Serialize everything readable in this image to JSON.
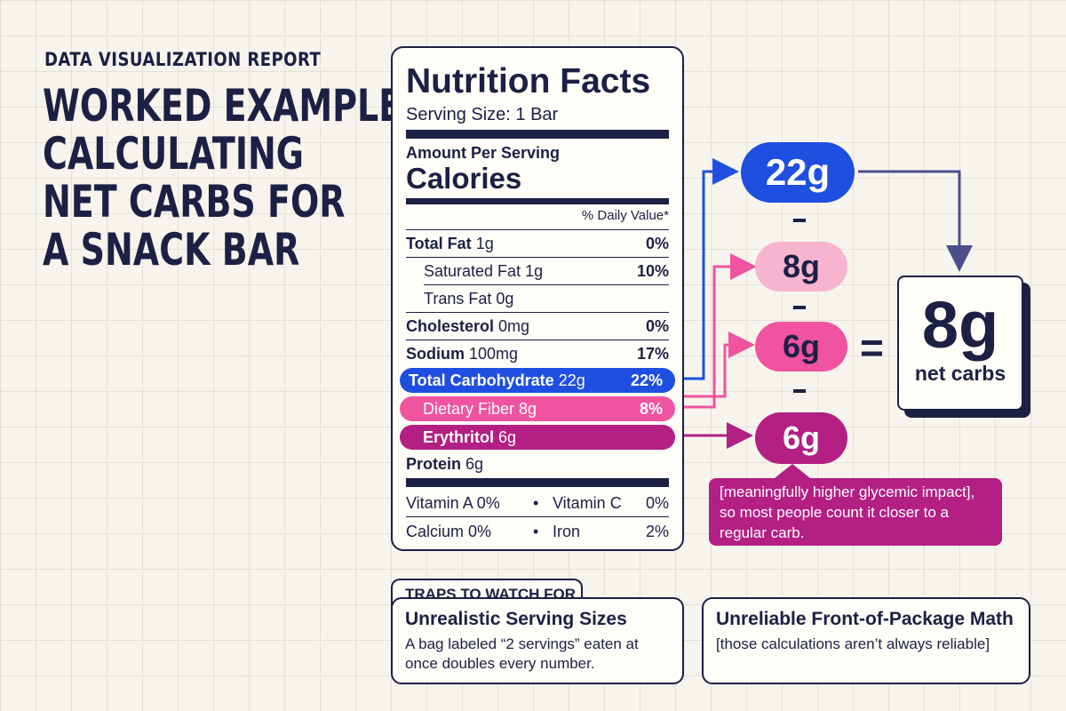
{
  "header": {
    "eyebrow": "DATA VISUALIZATION REPORT",
    "title_lines": [
      "WORKED EXAMPLE:",
      "CALCULATING",
      "NET CARBS FOR",
      "A SNACK BAR"
    ]
  },
  "nutrition_label": {
    "title": "Nutrition Facts",
    "serving_size": "Serving Size: 1 Bar",
    "amount_per_serving": "Amount Per Serving",
    "calories_label": "Calories",
    "daily_value_header": "% Daily Value*",
    "rows": {
      "total_fat": {
        "label": "Total Fat",
        "amount": "1g",
        "pct": "0%"
      },
      "saturated_fat": {
        "label": "Saturated Fat",
        "amount": "1g",
        "pct": "10%"
      },
      "trans_fat": {
        "label": "Trans Fat",
        "amount": "0g"
      },
      "cholesterol": {
        "label": "Cholesterol",
        "amount": "0mg",
        "pct": "0%"
      },
      "sodium": {
        "label": "Sodium",
        "amount": "100mg",
        "pct": "17%"
      },
      "total_carbohydrate": {
        "label": "Total Carbohydrate",
        "amount": "22g",
        "pct": "22%"
      },
      "dietary_fiber": {
        "label": "Dietary Fiber",
        "amount": "8g",
        "pct": "8%"
      },
      "erythritol": {
        "label": "Erythritol",
        "amount": "6g"
      },
      "protein": {
        "label": "Protein",
        "amount": "6g"
      }
    },
    "vitamins": {
      "vitamin_a": "Vitamin A 0%",
      "vitamin_c": "Vitamin C",
      "vitamin_c_pct": "0%",
      "calcium": "Calcium 0%",
      "iron": "Iron",
      "iron_pct": "2%",
      "bullet": "•"
    }
  },
  "equation": {
    "total_carbs": "22g",
    "minus_symbol": "-",
    "fiber": "8g",
    "erythritol_primary": "6g",
    "equals_symbol": "=",
    "erythritol_secondary": "6g",
    "result_value": "8g",
    "result_label": "net carbs"
  },
  "callout": {
    "text": "[meaningfully higher glycemic impact], so most people count it closer to a regular carb."
  },
  "traps": {
    "header": "TRAPS TO WATCH FOR",
    "cards": [
      {
        "title": "Unrealistic Serving Sizes",
        "body": "A bag labeled “2 servings” eaten at once doubles every number."
      },
      {
        "title": "Unreliable Front-of-Package Math",
        "body": "[those calculations aren’t always reliable]"
      }
    ]
  },
  "colors": {
    "navy": "#1c2044",
    "carb_blue": "#1f4fe0",
    "fiber_pink": "#f0539f",
    "fiber_light": "#f7b4cf",
    "erythritol_magenta": "#b31f83",
    "background": "#f6f4ec"
  }
}
